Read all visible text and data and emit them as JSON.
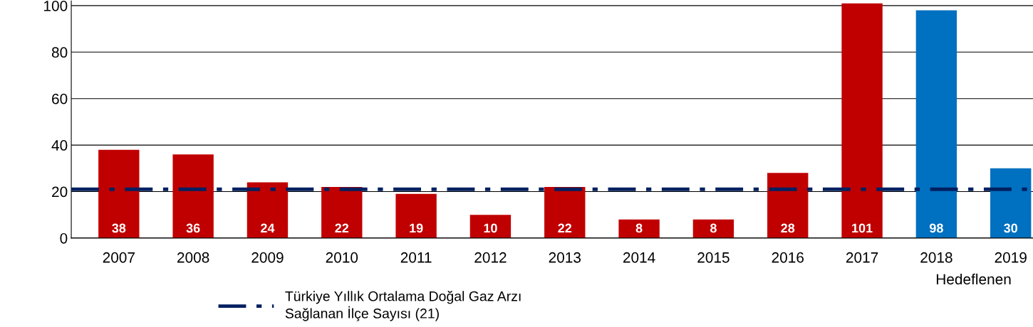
{
  "chart_data": {
    "type": "bar",
    "categories": [
      "2007",
      "2008",
      "2009",
      "2010",
      "2011",
      "2012",
      "2013",
      "2014",
      "2015",
      "2016",
      "2017",
      "2018",
      "2019"
    ],
    "values": [
      38,
      36,
      24,
      22,
      19,
      10,
      22,
      8,
      8,
      28,
      101,
      98,
      30
    ],
    "colors": [
      "#c00000",
      "#c00000",
      "#c00000",
      "#c00000",
      "#c00000",
      "#c00000",
      "#c00000",
      "#c00000",
      "#c00000",
      "#c00000",
      "#c00000",
      "#0070c0",
      "#0070c0"
    ],
    "data_labels": true,
    "ylim": [
      0,
      102
    ],
    "yticks": [
      0,
      20,
      40,
      60,
      80,
      100
    ],
    "grid": "y",
    "ref_lines": [
      {
        "axis": "y",
        "value": 21,
        "label": "Türkiye Yıllık Ortalama Doğal Gaz Arzı\nSağlanan İlçe Sayısı (21)",
        "color": "#002060",
        "line_style": "dashdot"
      }
    ],
    "annotations": [
      "Hedeflenen"
    ],
    "legend": "bottom"
  }
}
